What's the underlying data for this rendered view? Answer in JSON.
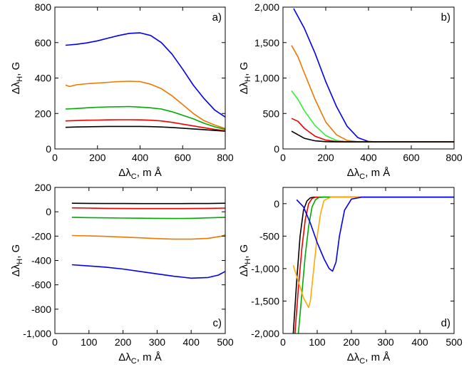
{
  "chart_data": [
    {
      "type": "line",
      "panel_label": "a)",
      "xlabel_main": "Δλ",
      "xlabel_sub": "C",
      "xlabel_unit": ", m Å",
      "ylabel_main": "Δλ",
      "ylabel_sub": "H",
      "ylabel_unit": ", G",
      "xlim": [
        0,
        800
      ],
      "ylim": [
        0,
        800
      ],
      "xticks": [
        0,
        200,
        400,
        600,
        800
      ],
      "yticks": [
        0,
        200,
        400,
        600,
        800
      ],
      "xtick_labels": [
        "0",
        "200",
        "400",
        "600",
        "800"
      ],
      "ytick_labels": [
        "0",
        "200",
        "400",
        "600",
        "800"
      ],
      "series": [
        {
          "color": "#0000ee",
          "x": [
            50,
            100,
            150,
            200,
            250,
            300,
            350,
            400,
            450,
            500,
            550,
            600,
            650,
            700,
            750,
            800
          ],
          "y": [
            585,
            590,
            598,
            610,
            625,
            640,
            652,
            655,
            640,
            600,
            535,
            450,
            360,
            285,
            220,
            180
          ]
        },
        {
          "color": "#ee7700",
          "x": [
            50,
            70,
            100,
            150,
            200,
            250,
            300,
            350,
            400,
            450,
            500,
            550,
            600,
            650,
            700,
            750,
            800
          ],
          "y": [
            360,
            352,
            362,
            368,
            372,
            376,
            380,
            382,
            380,
            365,
            340,
            300,
            250,
            200,
            160,
            135,
            115
          ]
        },
        {
          "color": "#00aa00",
          "x": [
            50,
            100,
            150,
            200,
            250,
            300,
            350,
            400,
            450,
            500,
            550,
            600,
            650,
            700,
            750,
            800
          ],
          "y": [
            225,
            228,
            232,
            235,
            237,
            238,
            239,
            236,
            232,
            225,
            210,
            190,
            170,
            145,
            125,
            110
          ]
        },
        {
          "color": "#ee0000",
          "x": [
            50,
            100,
            150,
            200,
            250,
            300,
            350,
            400,
            450,
            500,
            550,
            600,
            650,
            700,
            750,
            800
          ],
          "y": [
            158,
            160,
            162,
            163,
            164,
            165,
            165,
            164,
            162,
            158,
            150,
            140,
            130,
            120,
            110,
            102
          ]
        },
        {
          "color": "#000000",
          "x": [
            50,
            100,
            150,
            200,
            250,
            300,
            350,
            400,
            450,
            500,
            550,
            600,
            650,
            700,
            750,
            800
          ],
          "y": [
            122,
            124,
            125,
            126,
            127,
            127,
            127,
            127,
            126,
            124,
            121,
            117,
            113,
            109,
            104,
            100
          ]
        }
      ]
    },
    {
      "type": "line",
      "panel_label": "b)",
      "xlabel_main": "Δλ",
      "xlabel_sub": "C",
      "xlabel_unit": ", m Å",
      "ylabel_main": "Δλ",
      "ylabel_sub": "H",
      "ylabel_unit": ", G",
      "xlim": [
        0,
        800
      ],
      "ylim": [
        0,
        2000
      ],
      "xticks": [
        0,
        200,
        400,
        600,
        800
      ],
      "yticks": [
        0,
        500,
        1000,
        1500,
        2000
      ],
      "xtick_labels": [
        "0",
        "200",
        "400",
        "600",
        "800"
      ],
      "ytick_labels": [
        "0",
        "500",
        "1,000",
        "1,500",
        "2,000"
      ],
      "series": [
        {
          "color": "#0000ee",
          "x": [
            50,
            100,
            150,
            200,
            250,
            300,
            350,
            400,
            450,
            500,
            600,
            700,
            800
          ],
          "y": [
            1980,
            1700,
            1350,
            950,
            600,
            320,
            160,
            105,
            100,
            100,
            100,
            100,
            100
          ]
        },
        {
          "color": "#ee7700",
          "x": [
            40,
            70,
            100,
            150,
            200,
            250,
            300,
            350,
            400,
            500,
            600,
            700,
            800
          ],
          "y": [
            1460,
            1300,
            1070,
            700,
            380,
            200,
            120,
            102,
            100,
            100,
            100,
            100,
            100
          ]
        },
        {
          "color": "#33ee33",
          "x": [
            40,
            70,
            100,
            150,
            200,
            250,
            300,
            350,
            400,
            500,
            800
          ],
          "y": [
            820,
            700,
            540,
            330,
            190,
            120,
            103,
            100,
            100,
            100,
            100
          ]
        },
        {
          "color": "#ee0000",
          "x": [
            40,
            70,
            100,
            150,
            200,
            250,
            300,
            350,
            500,
            800
          ],
          "y": [
            430,
            390,
            290,
            180,
            125,
            105,
            100,
            100,
            100,
            100
          ]
        },
        {
          "color": "#000000",
          "x": [
            40,
            70,
            100,
            150,
            200,
            250,
            300,
            350,
            500,
            800
          ],
          "y": [
            250,
            200,
            150,
            115,
            103,
            100,
            100,
            100,
            100,
            100
          ]
        }
      ]
    },
    {
      "type": "line",
      "panel_label": "c)",
      "xlabel_main": "Δλ",
      "xlabel_sub": "C",
      "xlabel_unit": ", m Å",
      "ylabel_main": "Δλ",
      "ylabel_sub": "H",
      "ylabel_unit": ", G",
      "xlim": [
        0,
        500
      ],
      "ylim": [
        -1000,
        200
      ],
      "xticks": [
        0,
        100,
        200,
        300,
        400,
        500
      ],
      "yticks": [
        -1000,
        -800,
        -600,
        -400,
        -200,
        0,
        200
      ],
      "xtick_labels": [
        "0",
        "100",
        "200",
        "300",
        "400",
        "500"
      ],
      "ytick_labels": [
        "-1,000",
        "-800",
        "-600",
        "-400",
        "-200",
        "0",
        "200"
      ],
      "series": [
        {
          "color": "#000000",
          "x": [
            50,
            100,
            150,
            200,
            250,
            300,
            350,
            400,
            450,
            500
          ],
          "y": [
            70,
            69,
            68,
            68,
            67,
            67,
            67,
            68,
            68,
            70
          ]
        },
        {
          "color": "#ee0000",
          "x": [
            50,
            100,
            150,
            200,
            250,
            300,
            350,
            400,
            450,
            500
          ],
          "y": [
            32,
            30,
            28,
            27,
            26,
            26,
            26,
            27,
            28,
            30
          ]
        },
        {
          "color": "#00aa00",
          "x": [
            50,
            100,
            150,
            200,
            250,
            300,
            350,
            400,
            450,
            500
          ],
          "y": [
            -45,
            -48,
            -50,
            -52,
            -53,
            -54,
            -55,
            -54,
            -50,
            -45
          ]
        },
        {
          "color": "#ee7700",
          "x": [
            50,
            100,
            150,
            200,
            250,
            300,
            350,
            400,
            450,
            490,
            500
          ],
          "y": [
            -195,
            -198,
            -202,
            -208,
            -214,
            -220,
            -225,
            -225,
            -218,
            -200,
            -190
          ]
        },
        {
          "color": "#0000ee",
          "x": [
            50,
            100,
            150,
            200,
            250,
            300,
            350,
            400,
            450,
            480,
            500
          ],
          "y": [
            -435,
            -445,
            -455,
            -470,
            -490,
            -510,
            -530,
            -545,
            -540,
            -520,
            -490
          ]
        }
      ]
    },
    {
      "type": "line",
      "panel_label": "d)",
      "xlabel_main": "Δλ",
      "xlabel_sub": "C",
      "xlabel_unit": ", m Å",
      "ylabel_main": "Δλ",
      "ylabel_sub": "H",
      "ylabel_unit": ", G",
      "xlim": [
        0,
        500
      ],
      "ylim": [
        -2000,
        250
      ],
      "xticks": [
        0,
        100,
        200,
        300,
        400,
        500
      ],
      "yticks": [
        -2000,
        -1500,
        -1000,
        -500,
        0
      ],
      "xtick_labels": [
        "0",
        "100",
        "200",
        "300",
        "400",
        "500"
      ],
      "ytick_labels": [
        "-2,000",
        "-1,500",
        "-1,000",
        "-500",
        "0"
      ],
      "series": [
        {
          "color": "#000000",
          "x": [
            30,
            40,
            50,
            60,
            70,
            80,
            90,
            100,
            500
          ],
          "y": [
            -2000,
            -1200,
            -500,
            -100,
            40,
            90,
            100,
            100,
            100
          ]
        },
        {
          "color": "#ee0000",
          "x": [
            35,
            45,
            55,
            65,
            75,
            85,
            95,
            110,
            500
          ],
          "y": [
            -2000,
            -1300,
            -700,
            -250,
            0,
            80,
            98,
            100,
            100
          ]
        },
        {
          "color": "#00aa00",
          "x": [
            45,
            55,
            65,
            75,
            85,
            95,
            105,
            120,
            500
          ],
          "y": [
            -2000,
            -1400,
            -800,
            -350,
            -50,
            60,
            95,
            100,
            100
          ]
        },
        {
          "color": "#ffaa00",
          "x": [
            30,
            45,
            60,
            75,
            80,
            90,
            100,
            110,
            120,
            140,
            500
          ],
          "y": [
            -950,
            -1200,
            -1450,
            -1600,
            -1500,
            -1000,
            -500,
            -150,
            50,
            100,
            100
          ]
        },
        {
          "color": "#0000ee",
          "x": [
            40,
            60,
            80,
            100,
            120,
            135,
            145,
            155,
            165,
            180,
            200,
            230,
            500
          ],
          "y": [
            60,
            -50,
            -300,
            -600,
            -850,
            -1000,
            -1040,
            -900,
            -500,
            -100,
            70,
            100,
            100
          ]
        }
      ]
    }
  ]
}
